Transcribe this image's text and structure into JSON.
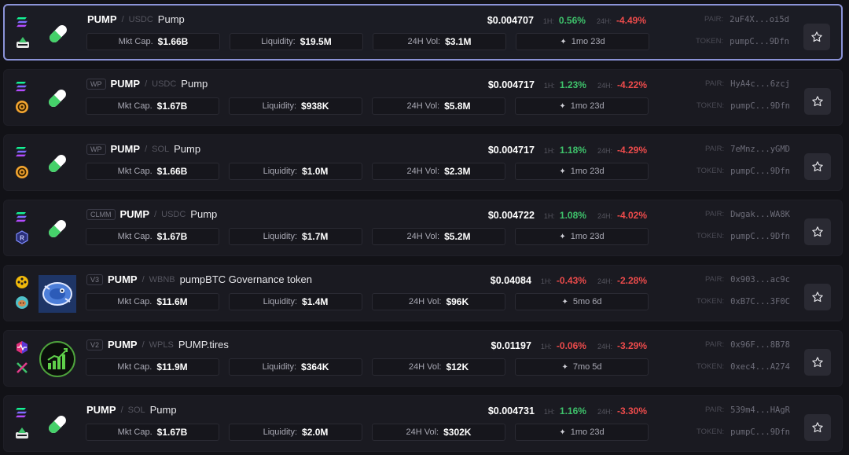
{
  "labels": {
    "mkt_cap": "Mkt Cap.",
    "liquidity": "Liquidity:",
    "vol": "24H Vol:",
    "h1": "1H:",
    "h24": "24H:",
    "pair": "PAIR:",
    "token": "TOKEN:"
  },
  "rows": [
    {
      "tag": "",
      "base": "PUMP",
      "quote": "USDC",
      "name": "Pump",
      "price": "$0.004707",
      "h1": "0.56%",
      "h1_dir": "up",
      "h24": "-4.49%",
      "h24_dir": "down",
      "mkt_cap": "$1.66B",
      "liquidity": "$19.5M",
      "vol": "$3.1M",
      "age": "1mo 23d",
      "pair": "2uF4X...oi5d",
      "token": "pumpC...9Dfn",
      "chain_top": "solana",
      "chain_bottom": "dex-white"
    },
    {
      "tag": "WP",
      "base": "PUMP",
      "quote": "USDC",
      "name": "Pump",
      "price": "$0.004717",
      "h1": "1.23%",
      "h1_dir": "up",
      "h24": "-4.22%",
      "h24_dir": "down",
      "mkt_cap": "$1.67B",
      "liquidity": "$938K",
      "vol": "$5.8M",
      "age": "1mo 23d",
      "pair": "HyA4c...6zcj",
      "token": "pumpC...9Dfn",
      "chain_top": "solana",
      "chain_bottom": "orange-dex"
    },
    {
      "tag": "WP",
      "base": "PUMP",
      "quote": "SOL",
      "name": "Pump",
      "price": "$0.004717",
      "h1": "1.18%",
      "h1_dir": "up",
      "h24": "-4.29%",
      "h24_dir": "down",
      "mkt_cap": "$1.66B",
      "liquidity": "$1.0M",
      "vol": "$2.3M",
      "age": "1mo 23d",
      "pair": "7eMnz...yGMD",
      "token": "pumpC...9Dfn",
      "chain_top": "solana",
      "chain_bottom": "orange-dex"
    },
    {
      "tag": "CLMM",
      "base": "PUMP",
      "quote": "USDC",
      "name": "Pump",
      "price": "$0.004722",
      "h1": "1.08%",
      "h1_dir": "up",
      "h24": "-4.02%",
      "h24_dir": "down",
      "mkt_cap": "$1.67B",
      "liquidity": "$1.7M",
      "vol": "$5.2M",
      "age": "1mo 23d",
      "pair": "Dwgak...WA8K",
      "token": "pumpC...9Dfn",
      "chain_top": "solana",
      "chain_bottom": "raydium"
    },
    {
      "tag": "V3",
      "base": "PUMP",
      "quote": "WBNB",
      "name": "pumpBTC Governance token",
      "price": "$0.04084",
      "h1": "-0.43%",
      "h1_dir": "down",
      "h24": "-2.28%",
      "h24_dir": "down",
      "mkt_cap": "$11.6M",
      "liquidity": "$1.4M",
      "vol": "$96K",
      "age": "5mo 6d",
      "pair": "0x903...ac9c",
      "token": "0xB7C...3F0C",
      "chain_top": "bnb",
      "chain_bottom": "pancake"
    },
    {
      "tag": "V2",
      "base": "PUMP",
      "quote": "WPLS",
      "name": "PUMP.tires",
      "price": "$0.01197",
      "h1": "-0.06%",
      "h1_dir": "down",
      "h24": "-3.29%",
      "h24_dir": "down",
      "mkt_cap": "$11.9M",
      "liquidity": "$364K",
      "vol": "$12K",
      "age": "7mo 5d",
      "pair": "0x96F...8B78",
      "token": "0xec4...A274",
      "chain_top": "pulse",
      "chain_bottom": "pulsex"
    },
    {
      "tag": "",
      "base": "PUMP",
      "quote": "SOL",
      "name": "Pump",
      "price": "$0.004731",
      "h1": "1.16%",
      "h1_dir": "up",
      "h24": "-3.30%",
      "h24_dir": "down",
      "mkt_cap": "$1.67B",
      "liquidity": "$2.0M",
      "vol": "$302K",
      "age": "1mo 23d",
      "pair": "539m4...HAgR",
      "token": "pumpC...9Dfn",
      "chain_top": "solana",
      "chain_bottom": "dex-white"
    }
  ]
}
